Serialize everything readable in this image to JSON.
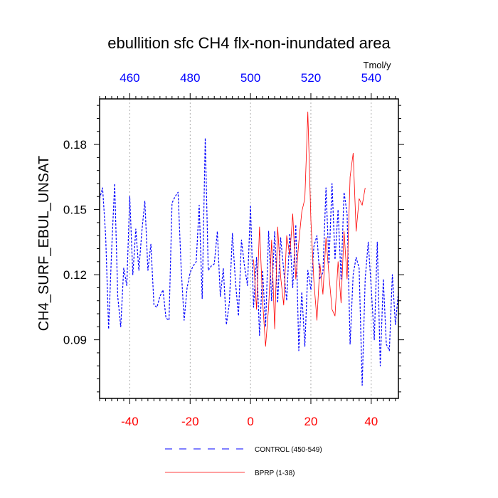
{
  "chart_data": {
    "type": "line",
    "title": "ebullition sfc CH4 flx-non-inundated area",
    "ylabel": "CH4_SURF_EBUL_UNSAT",
    "xlabel": "",
    "top_axis_units": "Tmol/y",
    "xlim": [
      -50,
      49
    ],
    "ylim": [
      0.063,
      0.201
    ],
    "yticks": [
      0.09,
      0.12,
      0.15,
      0.18
    ],
    "ytick_labels": [
      "0.09",
      "0.12",
      "0.15",
      "0.18"
    ],
    "xticks_bottom": [
      -40,
      -20,
      0,
      20,
      40
    ],
    "xtick_labels_bottom": [
      "-40",
      "-20",
      "0",
      "20",
      "40"
    ],
    "xticks_top": [
      -40,
      -20,
      0,
      20,
      40
    ],
    "xtick_labels_top": [
      "460",
      "480",
      "500",
      "520",
      "540"
    ],
    "grid": "vertical dotted at major x ticks",
    "series": [
      {
        "name": "CONTROL (450-549)",
        "color": "#0000ff",
        "style": "dashed",
        "x_start": -50,
        "values": [
          0.155,
          0.16,
          0.138,
          0.095,
          0.132,
          0.162,
          0.11,
          0.096,
          0.123,
          0.115,
          0.156,
          0.12,
          0.141,
          0.122,
          0.14,
          0.154,
          0.122,
          0.134,
          0.106,
          0.105,
          0.11,
          0.113,
          0.1,
          0.099,
          0.153,
          0.156,
          0.158,
          0.124,
          0.099,
          0.114,
          0.121,
          0.124,
          0.126,
          0.152,
          0.109,
          0.183,
          0.122,
          0.124,
          0.125,
          0.14,
          0.11,
          0.123,
          0.097,
          0.107,
          0.139,
          0.117,
          0.101,
          0.136,
          0.124,
          0.115,
          0.152,
          0.105,
          0.128,
          0.092,
          0.122,
          0.096,
          0.14,
          0.108,
          0.14,
          0.107,
          0.137,
          0.122,
          0.108,
          0.139,
          0.114,
          0.143,
          0.085,
          0.112,
          0.087,
          0.122,
          0.113,
          0.133,
          0.138,
          0.118,
          0.121,
          0.16,
          0.125,
          0.162,
          0.127,
          0.15,
          0.118,
          0.158,
          0.148,
          0.088,
          0.12,
          0.128,
          0.123,
          0.069,
          0.118,
          0.135,
          0.114,
          0.09,
          0.135,
          0.078,
          0.118,
          0.088,
          0.085,
          0.12,
          0.097,
          0.112
        ]
      },
      {
        "name": "BPRP (1-38)",
        "color": "#ff0000",
        "style": "solid",
        "x_start": 1,
        "values": [
          0.127,
          0.104,
          0.142,
          0.108,
          0.087,
          0.105,
          0.136,
          0.095,
          0.142,
          0.119,
          0.106,
          0.138,
          0.129,
          0.148,
          0.118,
          0.135,
          0.149,
          0.155,
          0.195,
          0.145,
          0.117,
          0.099,
          0.125,
          0.111,
          0.137,
          0.12,
          0.104,
          0.101,
          0.126,
          0.107,
          0.14,
          0.118,
          0.165,
          0.176,
          0.14,
          0.155,
          0.152,
          0.16
        ]
      }
    ],
    "legend": [
      {
        "label": "CONTROL (450-549)",
        "style": "dashed",
        "color": "#0000ff"
      },
      {
        "label": "BPRP (1-38)",
        "style": "solid",
        "color": "#ff0000"
      }
    ]
  }
}
